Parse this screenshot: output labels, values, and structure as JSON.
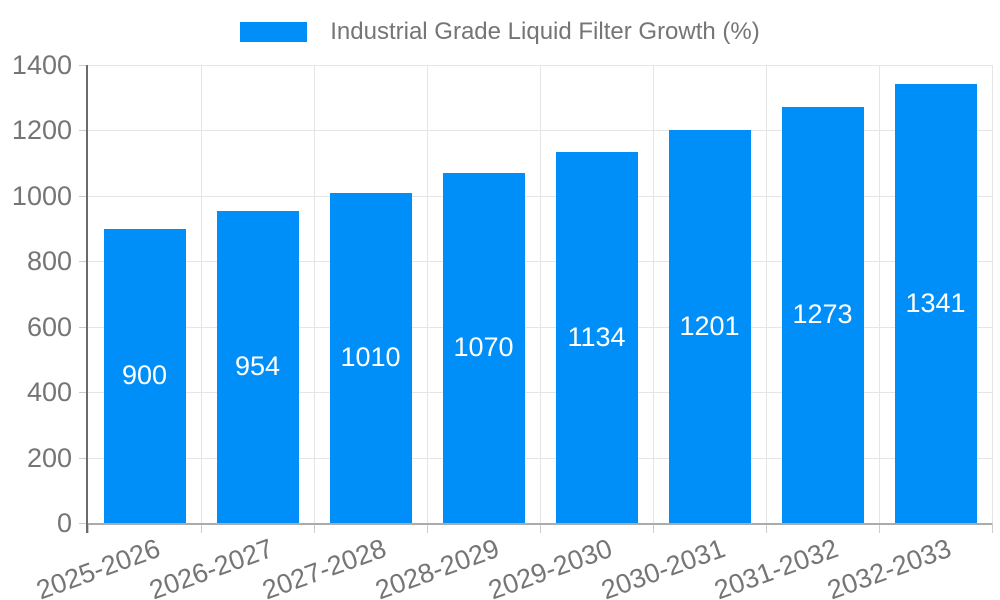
{
  "legend": {
    "position": "top-center",
    "swatch_color": "#008ff8",
    "label": "Industrial Grade Liquid Filter Growth (%)"
  },
  "chart_data": {
    "type": "bar",
    "title": "Industrial Grade Liquid Filter Growth (%)",
    "xlabel": "",
    "ylabel": "",
    "categories": [
      "2025-2026",
      "2026-2027",
      "2027-2028",
      "2028-2029",
      "2029-2030",
      "2030-2031",
      "2031-2032",
      "2032-2033"
    ],
    "values": [
      900,
      954,
      1010,
      1070,
      1134,
      1201,
      1273,
      1341
    ],
    "value_labels": [
      "900",
      "954",
      "1010",
      "1070",
      "1134",
      "1201",
      "1273",
      "1341"
    ],
    "ylim": [
      0,
      1400
    ],
    "yticks": [
      0,
      200,
      400,
      600,
      800,
      1000,
      1200,
      1400
    ],
    "grid": "horizontal and vertical gridlines on",
    "legend_position": "top",
    "x_label_rotation_deg": -20,
    "data_labels": "inside bars, vertically centered, white",
    "colors": {
      "bar": "#008ff8",
      "bar_value_text": "#ffffff",
      "axis_text": "#757575",
      "gridline": "#e5e5e5",
      "tick": "#cccccc",
      "y_axis_line": "#6b6b6b",
      "x_axis_line": "#ababab",
      "background": "#ffffff"
    }
  }
}
